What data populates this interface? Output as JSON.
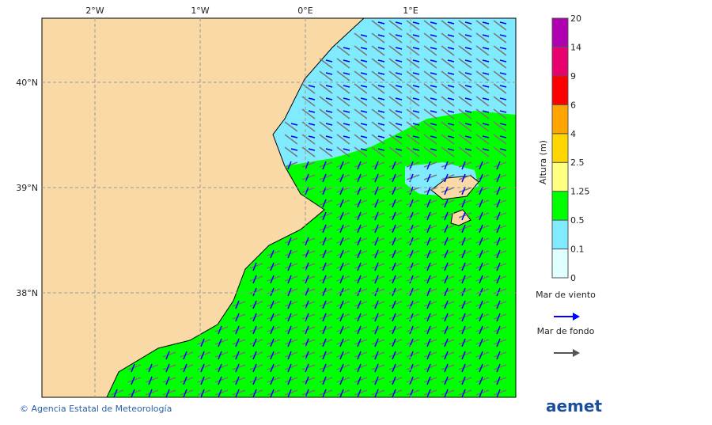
{
  "map": {
    "lon_labels": [
      "2°W",
      "1°W",
      "0°E",
      "1°E"
    ],
    "lat_labels": [
      "40°N",
      "39°N",
      "38°N"
    ],
    "colorbar": {
      "title": "Altura (m)",
      "levels": [
        0,
        0.1,
        0.5,
        1.25,
        2.5,
        4,
        6,
        9,
        14,
        20
      ],
      "colors": [
        "#e0ffff",
        "#80eaff",
        "#00ff00",
        "#ffff80",
        "#ffd700",
        "#ffa500",
        "#ff0000",
        "#e8006e",
        "#b000b0"
      ]
    },
    "legend": [
      {
        "label": "Mar de viento",
        "color": "#0000ff"
      },
      {
        "label": "Mar de fondo",
        "color": "#555555"
      }
    ],
    "footer": {
      "credit": "© Agencia Estatal de Meteorología",
      "logo": "aemet"
    }
  }
}
